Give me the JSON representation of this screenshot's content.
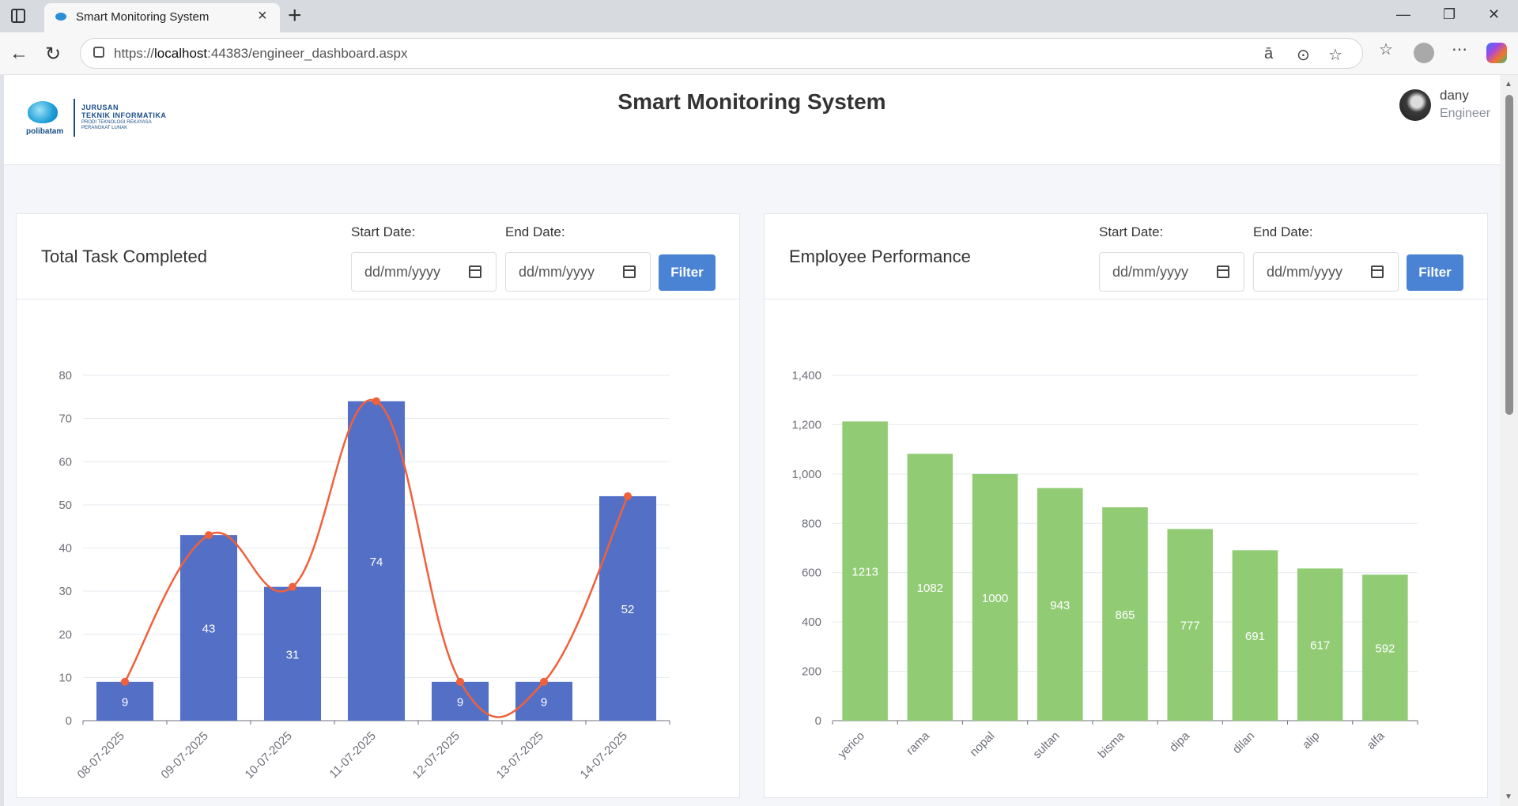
{
  "browser": {
    "tab_title": "Smart Monitoring System",
    "url_prefix": "https://",
    "url_host": "localhost",
    "url_rest": ":44383/engineer_dashboard.aspx"
  },
  "header": {
    "logo_text": "polibatam",
    "logo_line1": "JURUSAN",
    "logo_line2": "TEKNIK INFORMATIKA",
    "logo_line3": "PRODI TEKNOLOGI REKAYASA",
    "logo_line4": "PERANGKAT LUNAK",
    "title": "Smart Monitoring System",
    "user_name": "dany",
    "user_role": "Engineer"
  },
  "cards": [
    {
      "title": "Total Task Completed",
      "start_label": "Start Date:",
      "end_label": "End Date:",
      "start_placeholder": "dd/mm/yyyy",
      "end_placeholder": "dd/mm/yyyy",
      "filter_label": "Filter"
    },
    {
      "title": "Employee Performance",
      "start_label": "Start Date:",
      "end_label": "End Date:",
      "start_placeholder": "dd/mm/yyyy",
      "end_placeholder": "dd/mm/yyyy",
      "filter_label": "Filter"
    }
  ],
  "chart_data": [
    {
      "type": "bar",
      "overlay": "line",
      "categories": [
        "08-07-2025",
        "09-07-2025",
        "10-07-2025",
        "11-07-2025",
        "12-07-2025",
        "13-07-2025",
        "14-07-2025"
      ],
      "values": [
        9,
        43,
        31,
        74,
        9,
        9,
        52
      ],
      "ylim": [
        0,
        80
      ],
      "yticks": [
        0,
        10,
        20,
        30,
        40,
        50,
        60,
        70,
        80
      ],
      "bar_color": "#5470c6",
      "line_color": "#f0603a",
      "grid": true
    },
    {
      "type": "bar",
      "categories": [
        "yerico",
        "rama",
        "nopal",
        "sultan",
        "bisma",
        "dipa",
        "dilan",
        "alip",
        "alfa"
      ],
      "values": [
        1213,
        1082,
        1000,
        943,
        865,
        777,
        691,
        617,
        592
      ],
      "ylim": [
        0,
        1400
      ],
      "yticks": [
        "0",
        "200",
        "400",
        "600",
        "800",
        "1,000",
        "1,200",
        "1,400"
      ],
      "bar_color": "#91cc75",
      "grid": true
    }
  ]
}
